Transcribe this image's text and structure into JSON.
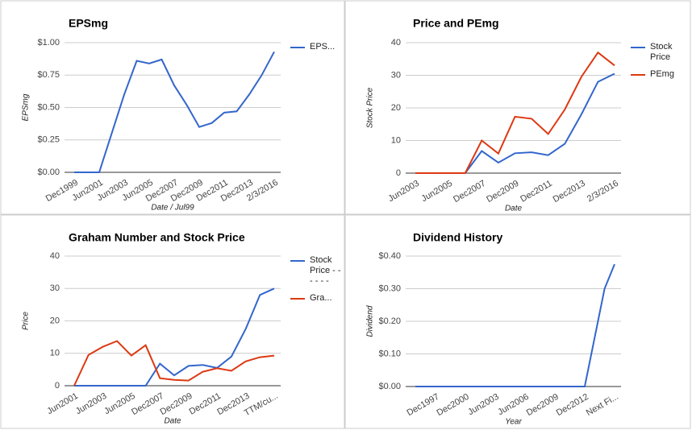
{
  "chart_data": [
    {
      "type": "line",
      "title": "EPSmg",
      "x_label": "Date / Jul99",
      "y_label": "EPSmg",
      "categories": [
        "Dec1999",
        null,
        "Jun2001",
        null,
        "Jun2003",
        null,
        "Jun2005",
        null,
        "Dec2007",
        null,
        "Dec2009",
        null,
        "Dec2011",
        null,
        "Dec2013",
        null,
        "2/3/2016"
      ],
      "series": [
        {
          "name": "EPS...",
          "color": "#3366cc",
          "values": [
            0,
            0,
            0,
            0.3,
            0.6,
            0.86,
            0.84,
            0.87,
            0.67,
            0.52,
            0.35,
            0.38,
            0.46,
            0.47,
            0.6,
            0.75,
            0.93
          ]
        }
      ],
      "ylim": [
        0,
        1
      ],
      "yticks": [
        {
          "value": 0,
          "label": "$0.00"
        },
        {
          "value": 0.25,
          "label": "$0.25"
        },
        {
          "value": 0.5,
          "label": "$0.50"
        },
        {
          "value": 0.75,
          "label": "$0.75"
        },
        {
          "value": 1,
          "label": "$1.00"
        }
      ],
      "grid": true,
      "legend": "right"
    },
    {
      "type": "line",
      "title": "Price and PEmg",
      "x_label": "Date",
      "y_label": "Stock Price",
      "categories": [
        "Jun2003",
        null,
        "Jun2005",
        null,
        "Dec2007",
        null,
        "Dec2009",
        null,
        "Dec2011",
        null,
        "Dec2013",
        null,
        "2/3/2016"
      ],
      "series": [
        {
          "name": "Stock Price",
          "color": "#3366cc",
          "values": [
            0,
            0,
            0,
            0,
            6.8,
            3.2,
            6.1,
            6.4,
            5.5,
            9,
            18,
            28,
            30.5
          ]
        },
        {
          "name": "PEmg",
          "color": "#dc3912",
          "values": [
            0,
            0,
            0,
            0,
            10,
            6,
            17.3,
            16.7,
            12,
            19.5,
            29.5,
            37,
            33
          ]
        }
      ],
      "ylim": [
        0,
        40
      ],
      "yticks": [
        0,
        10,
        20,
        30,
        40
      ],
      "grid": true,
      "legend": "right"
    },
    {
      "type": "line",
      "title": "Graham Number and Stock Price",
      "x_label": "Date",
      "y_label": "Price",
      "categories": [
        "Jun2001",
        null,
        "Jun2003",
        null,
        "Jun2005",
        null,
        "Dec2007",
        null,
        "Dec2009",
        null,
        "Dec2011",
        null,
        "Dec2013",
        null,
        "TTM/cu..."
      ],
      "series": [
        {
          "name": "Stock Price - - - - - -",
          "color": "#3366cc",
          "values": [
            0,
            0,
            0,
            0,
            0,
            0,
            6.8,
            3.2,
            6.1,
            6.4,
            5.5,
            9,
            17.5,
            28,
            30
          ]
        },
        {
          "name": "Gra...",
          "color": "#dc3912",
          "values": [
            0,
            9.5,
            12,
            13.8,
            9.3,
            12.5,
            2.3,
            1.8,
            1.6,
            4.3,
            5.4,
            4.6,
            7.5,
            8.8,
            9.3
          ]
        }
      ],
      "ylim": [
        0,
        40
      ],
      "yticks": [
        0,
        10,
        20,
        30,
        40
      ],
      "grid": true,
      "legend": "right"
    },
    {
      "type": "line",
      "title": "Dividend History",
      "x_label": "Year",
      "y_label": "Dividend",
      "categories": [
        null,
        null,
        "Dec1997",
        null,
        null,
        "Dec2000",
        null,
        null,
        "Jun2003",
        null,
        null,
        "Jun2006",
        null,
        null,
        "Dec2009",
        null,
        null,
        "Dec2012",
        null,
        null,
        "Next Fi..."
      ],
      "color": "#3366cc",
      "values": [
        0,
        0,
        0,
        0,
        0,
        0,
        0,
        0,
        0,
        0,
        0,
        0,
        0,
        0,
        0,
        0,
        0,
        0,
        0.15,
        0.3,
        0.375
      ],
      "ylim": [
        0,
        0.4
      ],
      "yticks": [
        {
          "value": 0,
          "label": "$0.00"
        },
        {
          "value": 0.1,
          "label": "$0.10"
        },
        {
          "value": 0.2,
          "label": "$0.20"
        },
        {
          "value": 0.3,
          "label": "$0.30"
        },
        {
          "value": 0.4,
          "label": "$0.40"
        }
      ],
      "grid": true
    }
  ]
}
